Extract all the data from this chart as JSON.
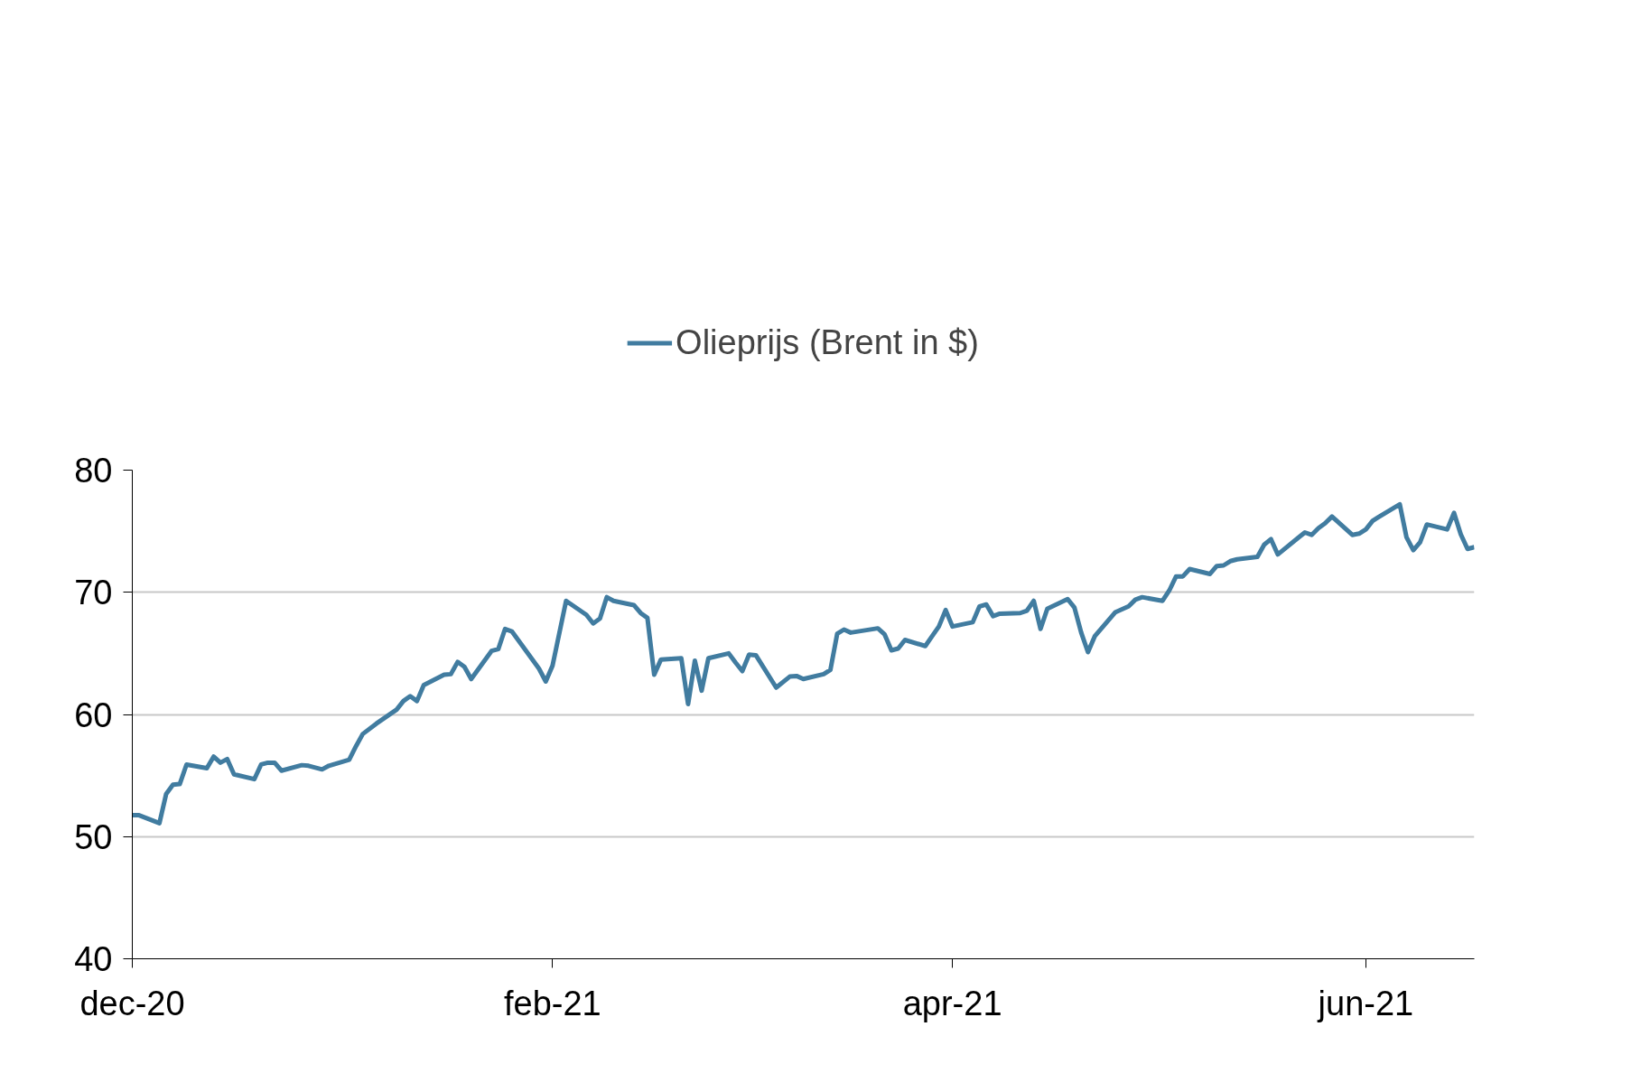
{
  "chart_data": {
    "type": "line",
    "x": [
      "2020-12-01",
      "2020-12-02",
      "2020-12-05",
      "2020-12-06",
      "2020-12-07",
      "2020-12-08",
      "2020-12-09",
      "2020-12-12",
      "2020-12-13",
      "2020-12-14",
      "2020-12-15",
      "2020-12-16",
      "2020-12-19",
      "2020-12-20",
      "2020-12-21",
      "2020-12-22",
      "2020-12-23",
      "2020-12-26",
      "2020-12-27",
      "2020-12-29",
      "2020-12-30",
      "2021-01-02",
      "2021-01-03",
      "2021-01-04",
      "2021-01-06",
      "2021-01-09",
      "2021-01-10",
      "2021-01-11",
      "2021-01-12",
      "2021-01-13",
      "2021-01-16",
      "2021-01-17",
      "2021-01-18",
      "2021-01-19",
      "2021-01-20",
      "2021-01-23",
      "2021-01-24",
      "2021-01-25",
      "2021-01-26",
      "2021-01-30",
      "2021-01-31",
      "2021-02-01",
      "2021-02-03",
      "2021-02-06",
      "2021-02-07",
      "2021-02-08",
      "2021-02-09",
      "2021-02-10",
      "2021-02-13",
      "2021-02-14",
      "2021-02-15",
      "2021-02-16",
      "2021-02-17",
      "2021-02-20",
      "2021-02-21",
      "2021-02-22",
      "2021-02-23",
      "2021-02-24",
      "2021-02-27",
      "2021-02-28",
      "2021-03-01",
      "2021-03-02",
      "2021-03-03",
      "2021-03-06",
      "2021-03-08",
      "2021-03-09",
      "2021-03-10",
      "2021-03-13",
      "2021-03-14",
      "2021-03-15",
      "2021-03-16",
      "2021-03-17",
      "2021-03-21",
      "2021-03-22",
      "2021-03-23",
      "2021-03-24",
      "2021-03-25",
      "2021-03-28",
      "2021-03-29",
      "2021-03-30",
      "2021-03-31",
      "2021-04-01",
      "2021-04-04",
      "2021-04-05",
      "2021-04-06",
      "2021-04-07",
      "2021-04-08",
      "2021-04-11",
      "2021-04-12",
      "2021-04-13",
      "2021-04-14",
      "2021-04-15",
      "2021-04-18",
      "2021-04-19",
      "2021-04-20",
      "2021-04-21",
      "2021-04-22",
      "2021-04-25",
      "2021-04-27",
      "2021-04-28",
      "2021-04-29",
      "2021-05-02",
      "2021-05-03",
      "2021-05-04",
      "2021-05-05",
      "2021-05-06",
      "2021-05-09",
      "2021-05-10",
      "2021-05-11",
      "2021-05-12",
      "2021-05-13",
      "2021-05-16",
      "2021-05-17",
      "2021-05-18",
      "2021-05-19",
      "2021-05-22",
      "2021-05-23",
      "2021-05-24",
      "2021-05-25",
      "2021-05-26",
      "2021-05-27",
      "2021-05-30",
      "2021-05-31",
      "2021-06-01",
      "2021-06-02",
      "2021-06-03",
      "2021-06-06",
      "2021-06-07",
      "2021-06-08",
      "2021-06-09",
      "2021-06-10",
      "2021-06-13",
      "2021-06-14",
      "2021-06-15",
      "2021-06-16",
      "2021-06-17"
    ],
    "series": [
      {
        "name": "Olieprijs (Brent in $)",
        "color": "#417ca0",
        "values": [
          51.75,
          51.75,
          51.1,
          53.5,
          54.25,
          54.3,
          55.9,
          55.6,
          56.55,
          56.05,
          56.35,
          55.1,
          54.7,
          55.9,
          56.05,
          56.05,
          55.4,
          55.85,
          55.8,
          55.5,
          55.8,
          56.3,
          57.4,
          58.4,
          59.25,
          60.4,
          61.1,
          61.5,
          61.1,
          62.4,
          63.25,
          63.3,
          64.3,
          63.9,
          62.9,
          65.2,
          65.35,
          67.0,
          66.8,
          63.75,
          62.7,
          64.0,
          69.3,
          68.15,
          67.45,
          67.85,
          69.6,
          69.3,
          68.95,
          68.3,
          67.9,
          63.25,
          64.5,
          64.6,
          60.85,
          64.4,
          61.95,
          64.6,
          65.0,
          64.25,
          63.55,
          64.9,
          64.85,
          62.2,
          63.1,
          63.15,
          62.9,
          63.3,
          63.65,
          66.6,
          66.95,
          66.7,
          67.05,
          66.55,
          65.25,
          65.4,
          66.1,
          65.6,
          66.4,
          67.2,
          68.55,
          67.2,
          67.55,
          68.85,
          69.0,
          68.05,
          68.25,
          68.3,
          68.5,
          69.3,
          67.0,
          68.65,
          69.45,
          68.75,
          66.7,
          65.1,
          66.4,
          68.35,
          68.85,
          69.4,
          69.6,
          69.3,
          70.15,
          71.3,
          71.3,
          71.9,
          71.5,
          72.15,
          72.2,
          72.55,
          72.7,
          72.9,
          73.9,
          74.35,
          73.1,
          74.45,
          74.9,
          74.7,
          75.25,
          75.65,
          76.2,
          74.7,
          74.8,
          75.15,
          75.85,
          76.2,
          77.2,
          74.5,
          73.45,
          74.1,
          75.55,
          75.15,
          76.5,
          74.75,
          73.55,
          73.7
        ]
      }
    ],
    "xlim": [
      "2020-12-01",
      "2021-06-17"
    ],
    "xticks": [
      {
        "value": "2020-12-01",
        "label": "dec-20"
      },
      {
        "value": "2021-02-01",
        "label": "feb-21"
      },
      {
        "value": "2021-04-01",
        "label": "apr-21"
      },
      {
        "value": "2021-06-01",
        "label": "jun-21"
      }
    ],
    "ylim": [
      40,
      80
    ],
    "yticks": [
      40,
      50,
      60,
      70,
      80
    ],
    "grid": "y",
    "legend": "top",
    "line_style": "solid",
    "marker": "none"
  }
}
